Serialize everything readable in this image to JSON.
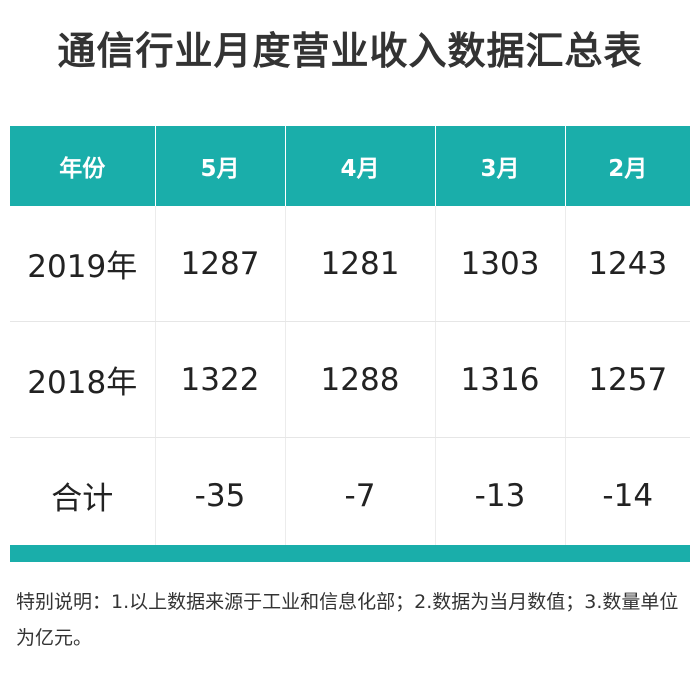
{
  "title": "通信行业月度营业收入数据汇总表",
  "table": {
    "header": [
      "年份",
      "5月",
      "4月",
      "3月",
      "2月"
    ],
    "rows": [
      [
        "2019年",
        "1287",
        "1281",
        "1303",
        "1243"
      ],
      [
        "2018年",
        "1322",
        "1288",
        "1316",
        "1257"
      ],
      [
        "合计",
        "-35",
        "-7",
        "-13",
        "-14"
      ]
    ]
  },
  "note": "特别说明：1.以上数据来源于工业和信息化部；2.数据为当月数值；3.数量单位为亿元。"
}
